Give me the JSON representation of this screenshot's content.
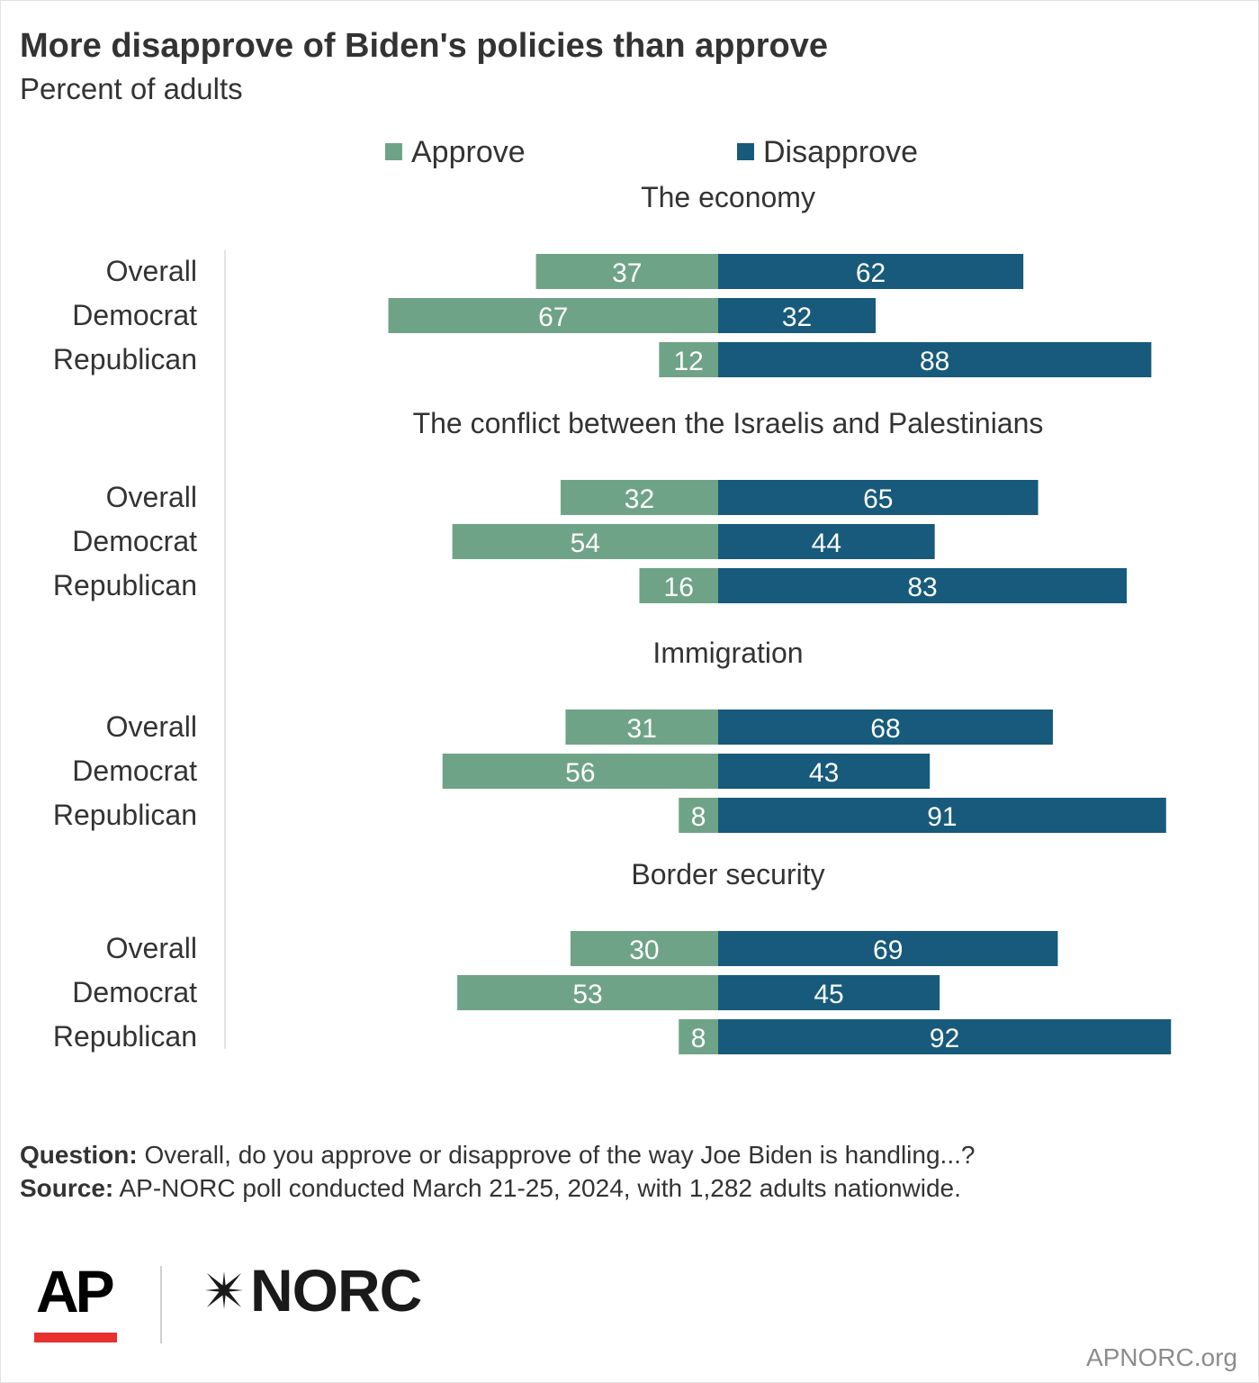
{
  "header": {
    "title": "More disapprove of Biden's policies than approve",
    "subtitle": "Percent of adults"
  },
  "legend": [
    {
      "label": "Approve",
      "color": "#6fa387"
    },
    {
      "label": "Disapprove",
      "color": "#175a7b"
    }
  ],
  "colors": {
    "approve": "#6fa387",
    "disapprove": "#175a7b",
    "label_text": "#ffffff",
    "axis_line": "#e4e4e4"
  },
  "chart_data": {
    "type": "bar",
    "orientation": "horizontal-diverging",
    "groups": [
      {
        "title": "The economy",
        "rows": [
          {
            "label": "Overall",
            "approve": 37,
            "disapprove": 62
          },
          {
            "label": "Democrat",
            "approve": 67,
            "disapprove": 32
          },
          {
            "label": "Republican",
            "approve": 12,
            "disapprove": 88
          }
        ]
      },
      {
        "title": "The conflict between the Israelis and Palestinians",
        "rows": [
          {
            "label": "Overall",
            "approve": 32,
            "disapprove": 65
          },
          {
            "label": "Democrat",
            "approve": 54,
            "disapprove": 44
          },
          {
            "label": "Republican",
            "approve": 16,
            "disapprove": 83
          }
        ]
      },
      {
        "title": "Immigration",
        "rows": [
          {
            "label": "Overall",
            "approve": 31,
            "disapprove": 68
          },
          {
            "label": "Democrat",
            "approve": 56,
            "disapprove": 43
          },
          {
            "label": "Republican",
            "approve": 8,
            "disapprove": 91
          }
        ]
      },
      {
        "title": "Border security",
        "rows": [
          {
            "label": "Overall",
            "approve": 30,
            "disapprove": 69
          },
          {
            "label": "Democrat",
            "approve": 53,
            "disapprove": 45
          },
          {
            "label": "Republican",
            "approve": 8,
            "disapprove": 92
          }
        ]
      }
    ],
    "series": [
      {
        "name": "Approve",
        "color": "#6fa387"
      },
      {
        "name": "Disapprove",
        "color": "#175a7b"
      }
    ],
    "legend_position": "top",
    "grid": false
  },
  "footer": {
    "question_label": "Question:",
    "question_text": " Overall, do you approve or disapprove of the way Joe Biden is handling...?",
    "source_label": "Source:",
    "source_text": " AP-NORC poll conducted March 21-25, 2024, with 1,282 adults nationwide.",
    "ap_logo": "AP",
    "norc_logo": "NORC",
    "site": "APNORC.org"
  }
}
